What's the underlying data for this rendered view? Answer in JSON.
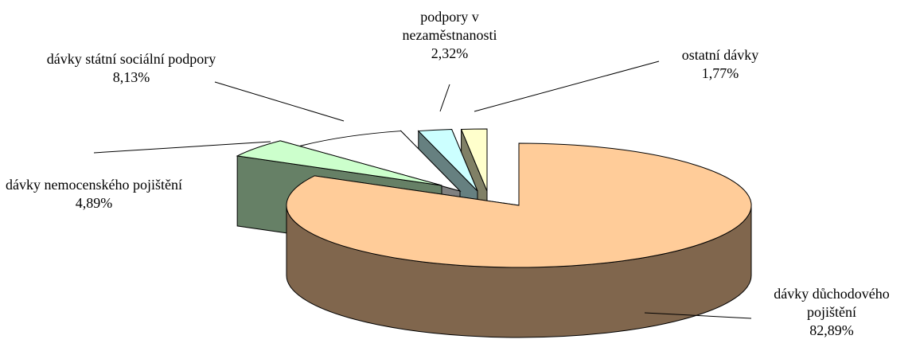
{
  "chart_data": {
    "type": "pie",
    "categories": [
      "dávky důchodového pojištění",
      "dávky nemocenského pojištění",
      "dávky státní sociální podpory",
      "podpory v nezaměstnanosti",
      "ostatní dávky"
    ],
    "values": [
      82.89,
      4.89,
      8.13,
      2.32,
      1.77
    ],
    "value_labels": [
      "82,89%",
      "4,89%",
      "8,13%",
      "2,32%",
      "1,77%"
    ],
    "colors": [
      "#ffcc99",
      "#ccffcc",
      "#ffffff",
      "#ccffff",
      "#ffffcc"
    ]
  }
}
